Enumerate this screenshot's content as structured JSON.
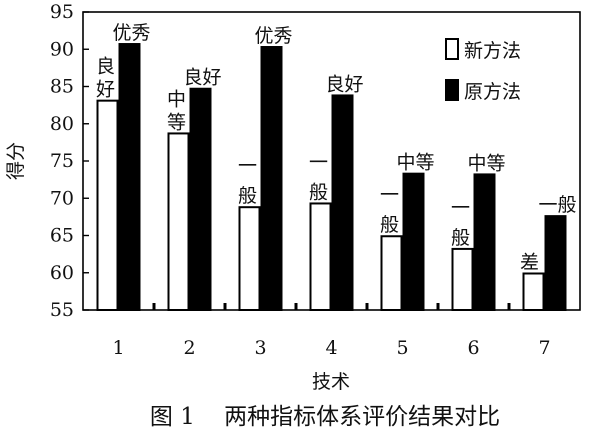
{
  "chart_data": {
    "type": "bar",
    "title": "",
    "caption": "图 1    两种指标体系评价结果对比",
    "xlabel": "技术",
    "ylabel": "得分",
    "ylim": [
      55,
      95
    ],
    "yticks": [
      55,
      60,
      65,
      70,
      75,
      80,
      85,
      90,
      95
    ],
    "categories": [
      "1",
      "2",
      "3",
      "4",
      "5",
      "6",
      "7"
    ],
    "grid": false,
    "legend_position": "top-right",
    "series": [
      {
        "name": "新方法",
        "fill": "#ffffff",
        "values": [
          83.1,
          78.7,
          68.8,
          69.3,
          64.9,
          63.2,
          59.9
        ],
        "labels": [
          "良好",
          "中等",
          "一般",
          "一般",
          "一般",
          "一般",
          "差"
        ]
      },
      {
        "name": "原方法",
        "fill": "#000000",
        "values": [
          90.7,
          84.7,
          90.3,
          83.8,
          73.3,
          73.2,
          67.6
        ],
        "labels": [
          "优秀",
          "良好",
          "优秀",
          "良好",
          "中等",
          "中等",
          "一般"
        ]
      }
    ]
  }
}
